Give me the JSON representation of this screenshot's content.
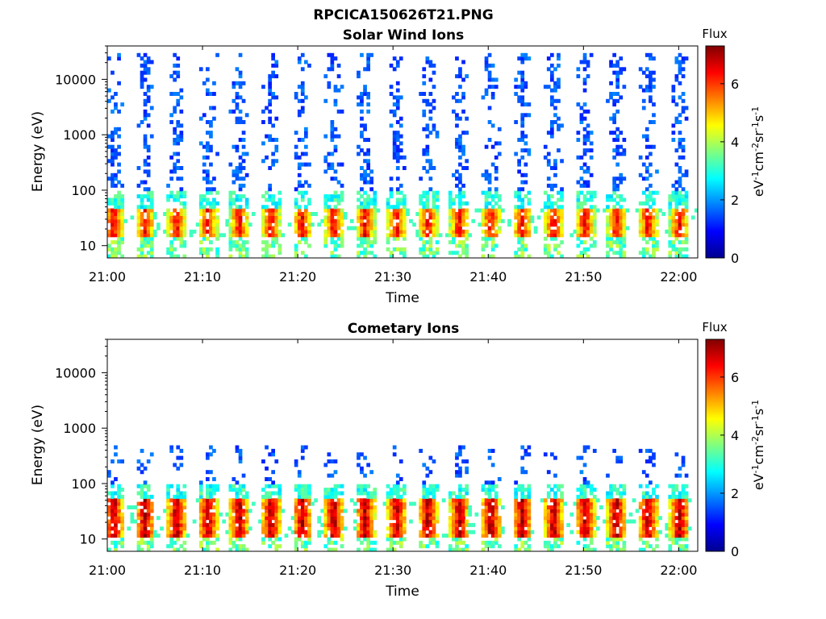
{
  "figure_title": "RPCICA150626T21.PNG",
  "chart_data": [
    {
      "type": "heatmap",
      "title": "Solar Wind Ions",
      "xlabel": "Time",
      "ylabel": "Energy (eV)",
      "x_ticks": [
        "21:00",
        "21:10",
        "21:20",
        "21:30",
        "21:40",
        "21:50",
        "22:00"
      ],
      "x_range": [
        "21:00",
        "22:02"
      ],
      "y_scale": "log",
      "y_ticks": [
        10,
        100,
        1000,
        10000
      ],
      "ylim": [
        6,
        40000
      ],
      "colorbar": {
        "title": "Flux",
        "label": "eV-1cm-2sr-1s-1",
        "ticks": [
          0,
          2,
          4,
          6
        ],
        "range": [
          0,
          7.3
        ],
        "colormap": "jet"
      },
      "pattern": {
        "sweep_interval_min": 3.3,
        "first_sweep_min": 0.5,
        "peak_energy_eV": [
          22,
          40
        ],
        "peak_flux": 6.5,
        "high_energy_flux": 1.5,
        "high_energy_max_eV": 30000
      }
    },
    {
      "type": "heatmap",
      "title": "Cometary Ions",
      "xlabel": "Time",
      "ylabel": "Energy (eV)",
      "x_ticks": [
        "21:00",
        "21:10",
        "21:20",
        "21:30",
        "21:40",
        "21:50",
        "22:00"
      ],
      "x_range": [
        "21:00",
        "22:02"
      ],
      "y_scale": "log",
      "y_ticks": [
        10,
        100,
        1000,
        10000
      ],
      "ylim": [
        6,
        40000
      ],
      "colorbar": {
        "title": "Flux",
        "label": "eV-1cm-2sr-1s-1",
        "ticks": [
          0,
          2,
          4,
          6
        ],
        "range": [
          0,
          7.3
        ],
        "colormap": "jet"
      },
      "pattern": {
        "sweep_interval_min": 3.3,
        "first_sweep_min": 0.5,
        "peak_energy_eV": [
          15,
          45
        ],
        "peak_flux": 7.0,
        "high_energy_flux": 1.5,
        "high_energy_max_eV": 500
      }
    }
  ]
}
